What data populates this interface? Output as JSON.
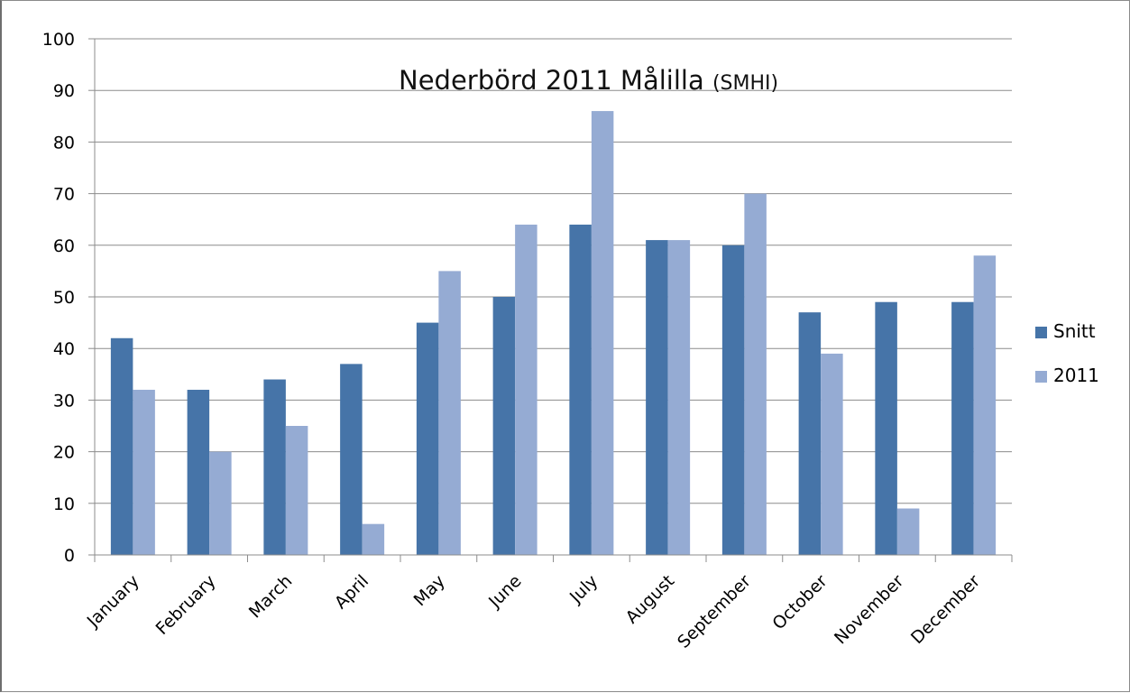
{
  "chart_data": {
    "type": "bar",
    "title": "Nederbörd 2011 Målilla",
    "title_suffix": "(SMHI)",
    "xlabel": "",
    "ylabel": "",
    "ylim": [
      0,
      100
    ],
    "yticks": [
      0,
      10,
      20,
      30,
      40,
      50,
      60,
      70,
      80,
      90,
      100
    ],
    "grid": true,
    "legend_position": "right",
    "categories": [
      "January",
      "February",
      "March",
      "April",
      "May",
      "June",
      "July",
      "August",
      "September",
      "October",
      "November",
      "December"
    ],
    "series": [
      {
        "name": "Snitt",
        "color": "#4674A8",
        "values": [
          42,
          32,
          34,
          37,
          45,
          50,
          64,
          61,
          60,
          47,
          49,
          49
        ]
      },
      {
        "name": "2011",
        "color": "#95ABD3",
        "values": [
          32,
          20,
          25,
          6,
          55,
          64,
          86,
          61,
          70,
          39,
          9,
          58
        ]
      }
    ]
  }
}
